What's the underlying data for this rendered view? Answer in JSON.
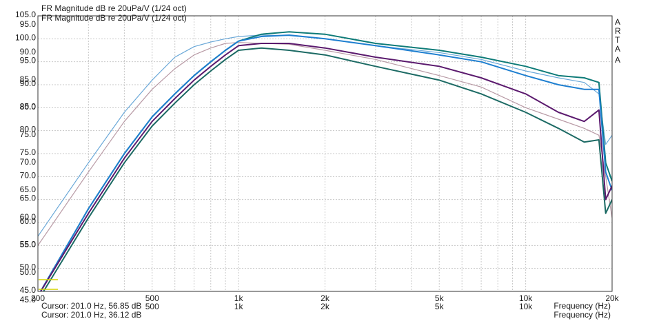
{
  "chart_data": {
    "type": "line",
    "titles": [
      "FR Magnitude dB re 20uPa/V (1/24 oct)",
      "FR Magnitude dB re 20uPa/V (1/24 oct)"
    ],
    "y_tick_labels_a": [
      "105.0",
      "100.0",
      "95.0",
      "90.0",
      "85.0",
      "80.0",
      "75.0",
      "70.0",
      "65.0",
      "60.0",
      "55.0",
      "50.0",
      "45.0"
    ],
    "y_tick_labels_b": [
      "95.0",
      "90.0",
      "85.0",
      "80.0",
      "75.0",
      "70.0",
      "65.0",
      "60.0",
      "55.0",
      "50.0",
      "45.0"
    ],
    "x_scale": "log",
    "xlim": [
      200,
      20000
    ],
    "ylim_primary": [
      45,
      105
    ],
    "x_tick_labels_a": [
      {
        "label": "200",
        "value": 200
      },
      {
        "label": "500",
        "value": 500
      },
      {
        "label": "1k",
        "value": 1000
      },
      {
        "label": "2k",
        "value": 2000
      },
      {
        "label": "5k",
        "value": 5000
      },
      {
        "label": "10k",
        "value": 10000
      },
      {
        "label": "20k",
        "value": 20000
      }
    ],
    "x_tick_labels_b": [
      {
        "label": "500",
        "value": 500
      },
      {
        "label": "1k",
        "value": 1000
      },
      {
        "label": "2k",
        "value": 2000
      },
      {
        "label": "5k",
        "value": 5000
      },
      {
        "label": "10k",
        "value": 10000
      }
    ],
    "xlabels": [
      "Frequency (Hz)",
      "Frequency (Hz)"
    ],
    "cursors": [
      "Cursor: 201.0 Hz, 56.85 dB",
      "Cursor: 201.0 Hz, 36.12 dB"
    ],
    "arta_marks": [
      "A",
      "R",
      "T",
      "A"
    ],
    "arta_mark_b": "A",
    "grid": true,
    "series": [
      {
        "color": "#6aa8d8",
        "x": [
          200,
          300,
          400,
          500,
          600,
          700,
          800,
          900,
          1000,
          1200,
          1500,
          2000,
          3000,
          5000,
          7000,
          10000,
          13000,
          16000,
          18000,
          19000,
          20000
        ],
        "y": [
          57.0,
          73.0,
          84.0,
          91.0,
          96.0,
          98.3,
          99.3,
          100.0,
          100.5,
          100.8,
          100.7,
          100.0,
          98.5,
          97.0,
          95.5,
          93.0,
          91.5,
          90.5,
          88.0,
          77.0,
          79.0
        ]
      },
      {
        "color": "#b89aa5",
        "x": [
          200,
          300,
          400,
          500,
          600,
          700,
          800,
          900,
          1000,
          1200,
          1500,
          2000,
          3000,
          5000,
          7000,
          10000,
          13000,
          16000,
          18000,
          19000,
          20000
        ],
        "y": [
          55.0,
          71.0,
          82.0,
          89.0,
          93.5,
          96.5,
          98.0,
          99.0,
          99.2,
          99.0,
          98.8,
          97.5,
          95.5,
          92.0,
          89.5,
          85.0,
          82.5,
          80.5,
          79.0,
          70.0,
          61.0
        ]
      },
      {
        "color": "#0e7b78",
        "x": [
          200,
          300,
          400,
          500,
          600,
          700,
          800,
          900,
          1000,
          1200,
          1500,
          2000,
          3000,
          5000,
          7000,
          10000,
          13000,
          16000,
          18000,
          19000,
          20000
        ],
        "y": [
          44.0,
          63.0,
          75.0,
          83.0,
          88.0,
          92.0,
          95.0,
          97.5,
          99.5,
          101.0,
          101.5,
          101.0,
          99.0,
          97.5,
          96.0,
          94.0,
          92.0,
          91.5,
          90.5,
          73.0,
          69.0
        ]
      },
      {
        "color": "#1e7fd0",
        "x": [
          200,
          300,
          400,
          500,
          600,
          700,
          800,
          900,
          1000,
          1200,
          1500,
          2000,
          3000,
          5000,
          7000,
          10000,
          13000,
          16000,
          18000,
          19000,
          20000
        ],
        "y": [
          44.0,
          63.0,
          75.0,
          83.0,
          88.0,
          92.0,
          95.0,
          97.5,
          99.5,
          100.5,
          100.8,
          100.0,
          98.5,
          96.5,
          95.0,
          92.0,
          90.0,
          89.0,
          89.0,
          71.0,
          67.0
        ]
      },
      {
        "color": "#5b1a6e",
        "x": [
          200,
          300,
          400,
          500,
          600,
          700,
          800,
          900,
          1000,
          1200,
          1500,
          2000,
          3000,
          5000,
          7000,
          10000,
          13000,
          16000,
          18000,
          19000,
          20000
        ],
        "y": [
          44.0,
          62.0,
          74.0,
          82.0,
          87.0,
          91.0,
          94.0,
          96.5,
          98.5,
          99.0,
          99.0,
          98.0,
          96.0,
          94.0,
          91.5,
          88.0,
          84.0,
          82.0,
          84.5,
          65.0,
          68.0
        ]
      },
      {
        "color": "#1c6a64",
        "x": [
          200,
          300,
          400,
          500,
          600,
          700,
          800,
          900,
          1000,
          1200,
          1500,
          2000,
          3000,
          5000,
          7000,
          10000,
          13000,
          16000,
          18000,
          19000,
          20000
        ],
        "y": [
          43.0,
          61.0,
          73.0,
          81.0,
          86.0,
          90.0,
          93.0,
          95.5,
          97.5,
          98.0,
          97.5,
          96.5,
          94.0,
          91.0,
          88.0,
          84.0,
          80.5,
          77.5,
          78.0,
          62.0,
          65.0
        ]
      }
    ]
  }
}
